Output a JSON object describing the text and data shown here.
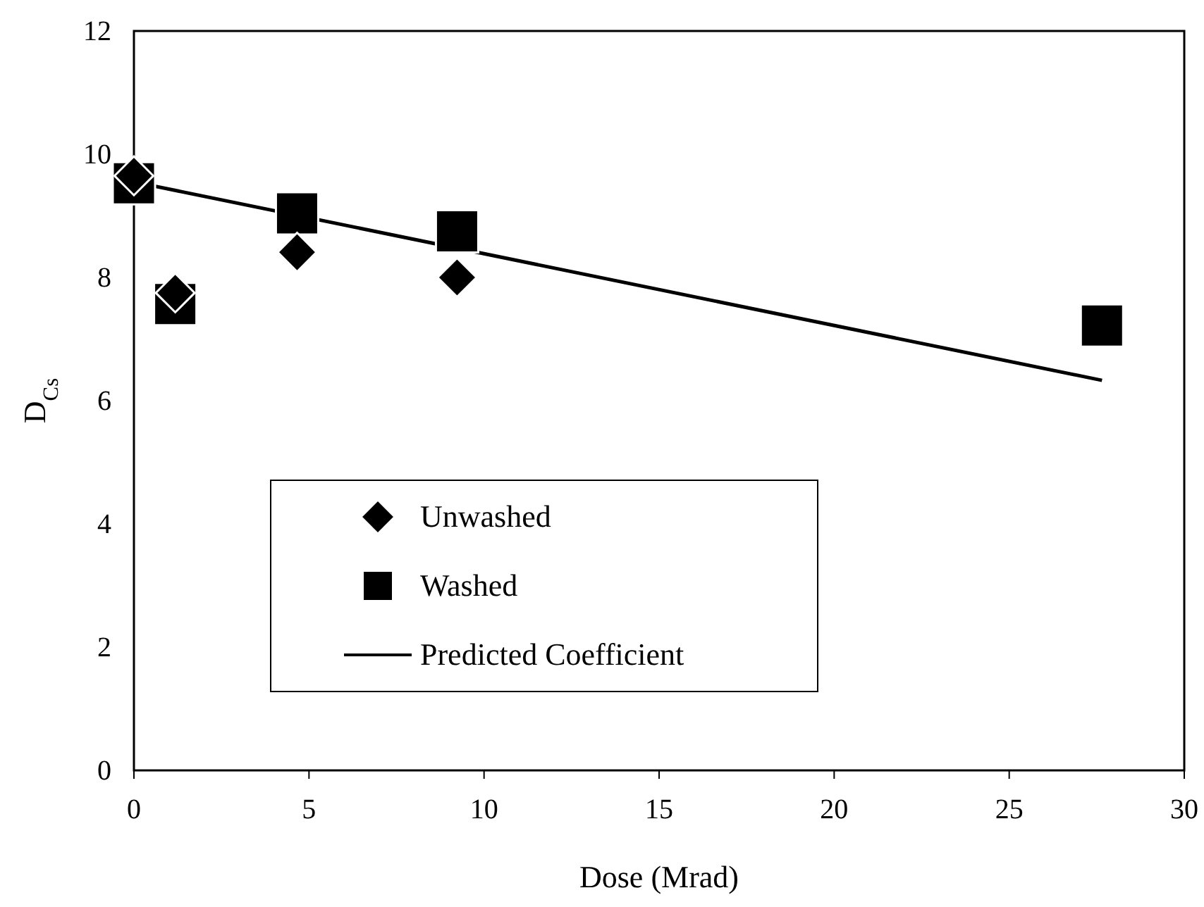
{
  "chart_data": {
    "type": "scatter",
    "xlabel": "Dose (Mrad)",
    "ylabel": "D$_{Cs}$",
    "xlim": [
      0,
      30
    ],
    "xticks": [
      0,
      5,
      10,
      15,
      20,
      25,
      30
    ],
    "ylim": [
      0,
      12
    ],
    "yticks": [
      0,
      2,
      4,
      6,
      8,
      10,
      12
    ],
    "grid": false,
    "legend": "bottom left",
    "series": [
      {
        "name": "Unwashed",
        "marker": "diamond",
        "color": "#000000",
        "x": [
          0,
          1.18,
          4.66,
          9.23
        ],
        "values": [
          9.65,
          7.75,
          8.41,
          8.0
        ]
      },
      {
        "name": "Washed",
        "marker": "square",
        "color": "#000000",
        "x": [
          0,
          1.18,
          4.66,
          9.23,
          27.65
        ],
        "values": [
          9.53,
          7.57,
          9.04,
          8.75,
          7.22
        ]
      },
      {
        "name": "Predicted Coefficient",
        "type": "line",
        "marker": "none",
        "line_style": "solid",
        "color": "#000000",
        "x": [
          0,
          27.65
        ],
        "values": [
          9.55,
          6.33
        ]
      }
    ]
  }
}
